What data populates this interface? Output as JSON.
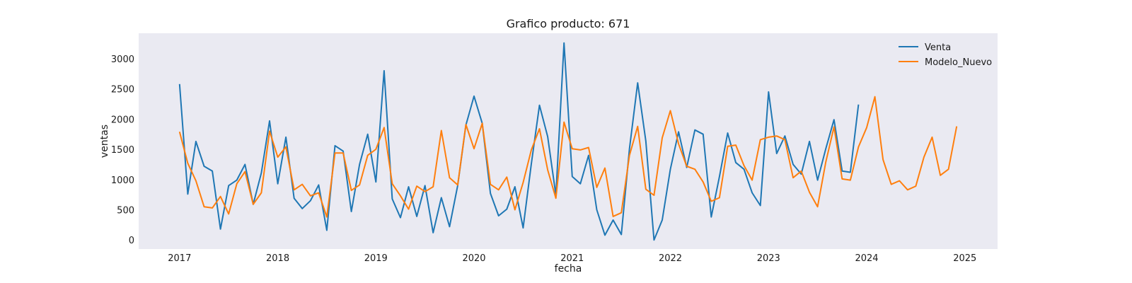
{
  "chart_data": {
    "type": "line",
    "title": "Grafico producto: 671",
    "xlabel": "fecha",
    "ylabel": "ventas",
    "x_ticks": [
      "2017",
      "2018",
      "2019",
      "2020",
      "2021",
      "2022",
      "2023",
      "2024",
      "2025"
    ],
    "y_ticks": [
      "0",
      "500",
      "1000",
      "1500",
      "2000",
      "2500",
      "3000"
    ],
    "xlim": [
      "2016-08",
      "2025-05"
    ],
    "ylim": [
      -150,
      3420
    ],
    "grid": false,
    "legend": "top-right",
    "series": [
      {
        "name": "Venta",
        "color": "#1f77b4",
        "start": "2017-01",
        "values": [
          2580,
          760,
          1630,
          1220,
          1140,
          180,
          900,
          990,
          1250,
          590,
          1110,
          1970,
          930,
          1700,
          690,
          520,
          650,
          910,
          160,
          1560,
          1470,
          470,
          1250,
          1750,
          960,
          2800,
          680,
          370,
          880,
          390,
          900,
          120,
          700,
          220,
          900,
          1900,
          2380,
          1930,
          770,
          400,
          510,
          880,
          200,
          1260,
          2230,
          1710,
          740,
          3260,
          1050,
          930,
          1400,
          500,
          80,
          330,
          90,
          1510,
          2600,
          1640,
          0,
          330,
          1170,
          1790,
          1200,
          1820,
          1750,
          380,
          1050,
          1770,
          1280,
          1170,
          780,
          570,
          2450,
          1430,
          1720,
          1250,
          1090,
          1630,
          990,
          1510,
          1990,
          1140,
          1120,
          2240
        ]
      },
      {
        "name": "Modelo_Nuevo",
        "color": "#ff7f0e",
        "start": "2017-01",
        "values": [
          1790,
          1270,
          980,
          550,
          530,
          720,
          430,
          930,
          1130,
          590,
          780,
          1800,
          1370,
          1540,
          830,
          920,
          730,
          780,
          380,
          1440,
          1440,
          820,
          910,
          1400,
          1500,
          1860,
          930,
          730,
          510,
          890,
          800,
          880,
          1810,
          1030,
          910,
          1910,
          1510,
          1930,
          920,
          830,
          1040,
          500,
          950,
          1490,
          1840,
          1160,
          690,
          1950,
          1510,
          1490,
          1530,
          870,
          1190,
          390,
          450,
          1400,
          1880,
          840,
          740,
          1690,
          2140,
          1590,
          1220,
          1170,
          960,
          640,
          700,
          1550,
          1570,
          1230,
          990,
          1660,
          1700,
          1720,
          1660,
          1030,
          1140,
          790,
          550,
          1290,
          1870,
          1010,
          990,
          1540,
          1860,
          2370,
          1330,
          920,
          980,
          830,
          890,
          1370,
          1700,
          1070,
          1170,
          1880
        ]
      }
    ]
  }
}
